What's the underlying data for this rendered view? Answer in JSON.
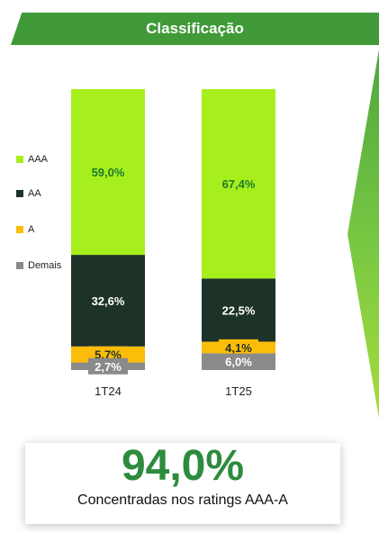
{
  "header": {
    "title": "Classificação"
  },
  "colors": {
    "header_bg": "#3f9a37",
    "AAA": "#a6ef1c",
    "AA": "#1e3328",
    "A": "#fbbc0a",
    "Demais": "#8a8a8a",
    "highlight": "#2e8b3e"
  },
  "chart_data": {
    "type": "bar",
    "stacked": true,
    "orientation": "vertical",
    "categories": [
      "1T24",
      "1T25"
    ],
    "series": [
      {
        "name": "AAA",
        "values": [
          59.0,
          67.4
        ],
        "labels": [
          "59,0%",
          "67,4%"
        ]
      },
      {
        "name": "AA",
        "values": [
          32.6,
          22.5
        ],
        "labels": [
          "32,6%",
          "22,5%"
        ]
      },
      {
        "name": "A",
        "values": [
          5.7,
          4.1
        ],
        "labels": [
          "5,7%",
          "4,1%"
        ]
      },
      {
        "name": "Demais",
        "values": [
          2.7,
          6.0
        ],
        "labels": [
          "2,7%",
          "6,0%"
        ]
      }
    ],
    "legend_order": [
      "AAA",
      "AA",
      "A",
      "Demais"
    ],
    "legend_position": "left",
    "ylim": [
      0,
      100
    ]
  },
  "callout": {
    "value": "94,0%",
    "text": "Concentradas nos ratings AAA-A"
  }
}
